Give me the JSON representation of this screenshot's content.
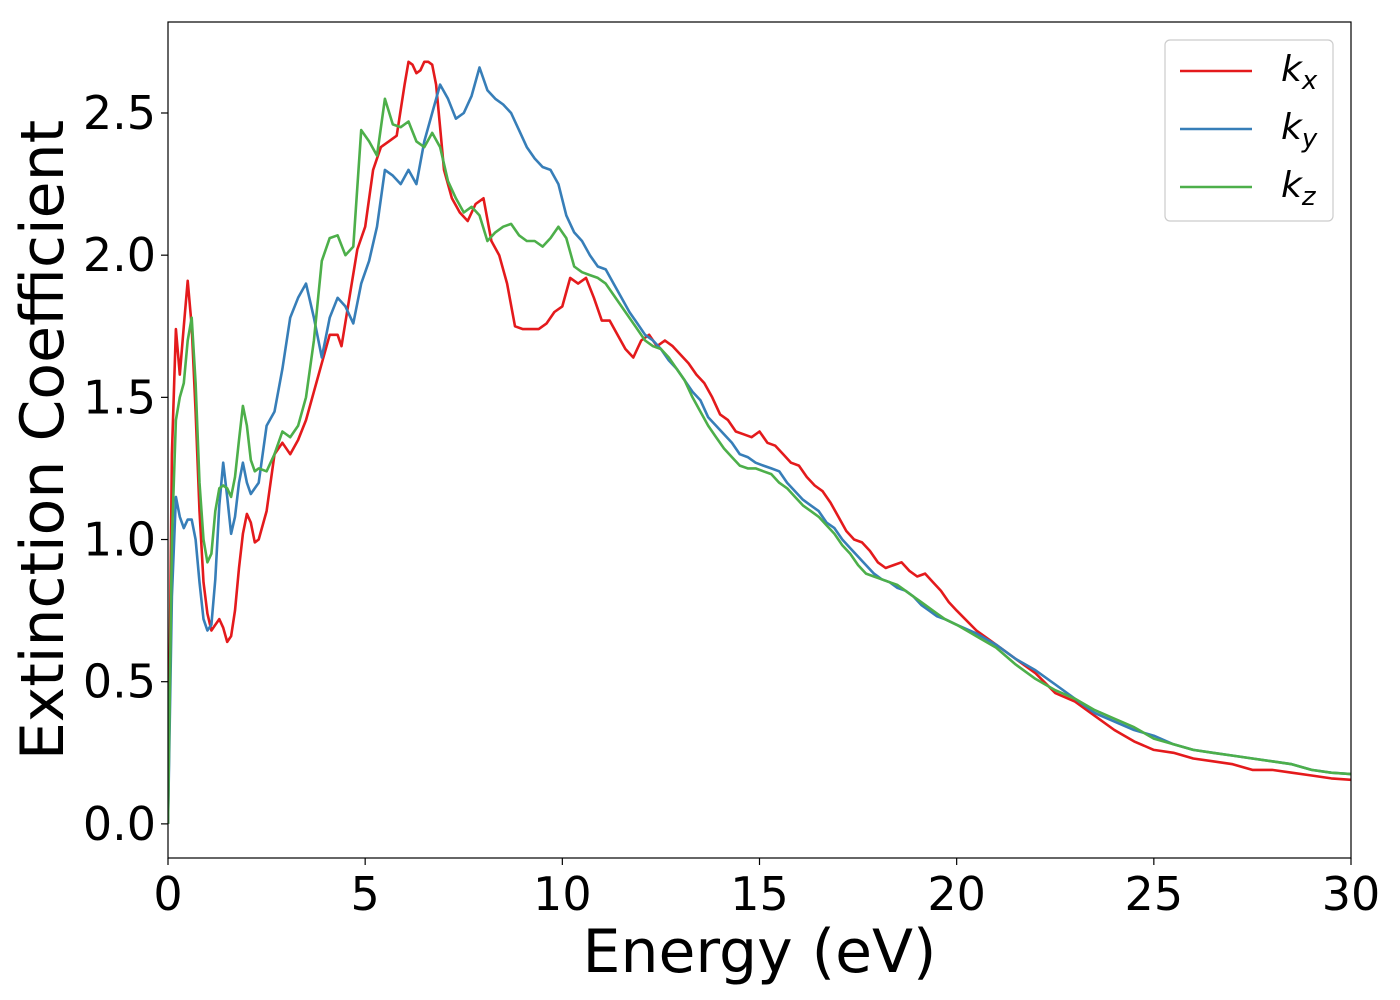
{
  "chart_data": {
    "type": "line",
    "xlabel": "Energy (eV)",
    "ylabel": "Extinction Coefficient",
    "xlim": [
      0,
      30
    ],
    "ylim": [
      -0.12,
      2.82
    ],
    "xticks": [
      0,
      5,
      10,
      15,
      20,
      25,
      30
    ],
    "yticks": [
      0.0,
      0.5,
      1.0,
      1.5,
      2.0,
      2.5
    ],
    "xtick_labels": [
      "0",
      "5",
      "10",
      "15",
      "20",
      "25",
      "30"
    ],
    "ytick_labels": [
      "0.0",
      "0.5",
      "1.0",
      "1.5",
      "2.0",
      "2.5"
    ],
    "grid": false,
    "legend_position": "top-right",
    "series": [
      {
        "name": "k_x",
        "label_main": "k",
        "label_sub": "x",
        "color": "#e41a1c",
        "x": [
          0,
          0.1,
          0.2,
          0.3,
          0.4,
          0.5,
          0.6,
          0.7,
          0.8,
          0.9,
          1.0,
          1.1,
          1.2,
          1.3,
          1.4,
          1.5,
          1.6,
          1.7,
          1.8,
          1.9,
          2.0,
          2.1,
          2.2,
          2.3,
          2.5,
          2.7,
          2.9,
          3.1,
          3.3,
          3.5,
          3.7,
          3.9,
          4.1,
          4.3,
          4.4,
          4.6,
          4.8,
          5.0,
          5.2,
          5.4,
          5.6,
          5.8,
          6.0,
          6.1,
          6.2,
          6.3,
          6.4,
          6.5,
          6.6,
          6.7,
          6.8,
          6.9,
          7.0,
          7.2,
          7.4,
          7.6,
          7.8,
          8.0,
          8.2,
          8.4,
          8.6,
          8.8,
          9.0,
          9.2,
          9.4,
          9.6,
          9.8,
          10.0,
          10.2,
          10.4,
          10.6,
          10.8,
          11.0,
          11.2,
          11.4,
          11.6,
          11.8,
          12.0,
          12.2,
          12.4,
          12.6,
          12.8,
          13.0,
          13.2,
          13.4,
          13.6,
          13.8,
          14.0,
          14.2,
          14.4,
          14.6,
          14.8,
          15.0,
          15.2,
          15.4,
          15.6,
          15.8,
          16.0,
          16.2,
          16.4,
          16.6,
          16.8,
          17.0,
          17.2,
          17.4,
          17.6,
          17.8,
          18.0,
          18.2,
          18.4,
          18.6,
          18.8,
          19.0,
          19.2,
          19.4,
          19.6,
          19.8,
          20.0,
          20.5,
          21.0,
          21.5,
          22.0,
          22.5,
          23.0,
          23.5,
          24.0,
          24.5,
          25.0,
          25.5,
          26.0,
          26.5,
          27.0,
          27.5,
          28.0,
          28.5,
          29.0,
          29.5,
          30.0
        ],
        "y": [
          0.0,
          1.3,
          1.74,
          1.58,
          1.75,
          1.91,
          1.75,
          1.45,
          1.1,
          0.85,
          0.74,
          0.68,
          0.7,
          0.72,
          0.69,
          0.64,
          0.66,
          0.75,
          0.9,
          1.02,
          1.09,
          1.06,
          0.99,
          1.0,
          1.1,
          1.3,
          1.34,
          1.3,
          1.35,
          1.42,
          1.52,
          1.62,
          1.72,
          1.72,
          1.68,
          1.85,
          2.02,
          2.1,
          2.3,
          2.38,
          2.4,
          2.42,
          2.6,
          2.68,
          2.67,
          2.64,
          2.65,
          2.68,
          2.68,
          2.67,
          2.6,
          2.45,
          2.3,
          2.2,
          2.15,
          2.12,
          2.18,
          2.2,
          2.05,
          2.0,
          1.9,
          1.75,
          1.74,
          1.74,
          1.74,
          1.76,
          1.8,
          1.82,
          1.92,
          1.9,
          1.92,
          1.85,
          1.77,
          1.77,
          1.72,
          1.67,
          1.64,
          1.7,
          1.72,
          1.68,
          1.7,
          1.68,
          1.65,
          1.62,
          1.58,
          1.55,
          1.5,
          1.44,
          1.42,
          1.38,
          1.37,
          1.36,
          1.38,
          1.34,
          1.33,
          1.3,
          1.27,
          1.26,
          1.22,
          1.19,
          1.17,
          1.13,
          1.08,
          1.03,
          1.0,
          0.99,
          0.96,
          0.92,
          0.9,
          0.91,
          0.92,
          0.89,
          0.87,
          0.88,
          0.85,
          0.82,
          0.78,
          0.75,
          0.68,
          0.63,
          0.58,
          0.53,
          0.46,
          0.43,
          0.38,
          0.33,
          0.29,
          0.26,
          0.25,
          0.23,
          0.22,
          0.21,
          0.19,
          0.19,
          0.18,
          0.17,
          0.16,
          0.155
        ]
      },
      {
        "name": "k_y",
        "label_main": "k",
        "label_sub": "y",
        "color": "#377eb8",
        "x": [
          0,
          0.1,
          0.2,
          0.3,
          0.4,
          0.5,
          0.6,
          0.7,
          0.8,
          0.9,
          1.0,
          1.1,
          1.2,
          1.3,
          1.4,
          1.5,
          1.6,
          1.7,
          1.8,
          1.9,
          2.0,
          2.1,
          2.2,
          2.3,
          2.5,
          2.7,
          2.9,
          3.1,
          3.3,
          3.5,
          3.7,
          3.9,
          4.1,
          4.3,
          4.5,
          4.7,
          4.9,
          5.1,
          5.3,
          5.5,
          5.7,
          5.9,
          6.1,
          6.3,
          6.5,
          6.7,
          6.9,
          7.1,
          7.3,
          7.5,
          7.7,
          7.9,
          8.1,
          8.3,
          8.5,
          8.7,
          8.9,
          9.1,
          9.3,
          9.5,
          9.7,
          9.9,
          10.1,
          10.3,
          10.5,
          10.7,
          10.9,
          11.1,
          11.3,
          11.5,
          11.7,
          11.9,
          12.1,
          12.3,
          12.5,
          12.7,
          12.9,
          13.1,
          13.3,
          13.5,
          13.7,
          13.9,
          14.1,
          14.3,
          14.5,
          14.7,
          14.9,
          15.1,
          15.3,
          15.5,
          15.7,
          15.9,
          16.1,
          16.3,
          16.5,
          16.7,
          16.9,
          17.1,
          17.3,
          17.5,
          17.7,
          17.9,
          18.1,
          18.3,
          18.5,
          18.7,
          18.9,
          19.1,
          19.3,
          19.5,
          19.7,
          20.0,
          20.5,
          21.0,
          21.5,
          22.0,
          22.5,
          23.0,
          23.5,
          24.0,
          24.5,
          25.0,
          25.5,
          26.0,
          26.5,
          27.0,
          27.5,
          28.0,
          28.5,
          29.0,
          29.5,
          30.0
        ],
        "y": [
          0.0,
          0.8,
          1.15,
          1.08,
          1.04,
          1.07,
          1.07,
          1.0,
          0.85,
          0.72,
          0.68,
          0.7,
          0.86,
          1.12,
          1.27,
          1.15,
          1.02,
          1.08,
          1.2,
          1.27,
          1.2,
          1.16,
          1.18,
          1.2,
          1.4,
          1.45,
          1.6,
          1.78,
          1.85,
          1.9,
          1.78,
          1.64,
          1.78,
          1.85,
          1.82,
          1.76,
          1.9,
          1.98,
          2.1,
          2.3,
          2.28,
          2.25,
          2.3,
          2.25,
          2.4,
          2.5,
          2.6,
          2.55,
          2.48,
          2.5,
          2.56,
          2.66,
          2.58,
          2.55,
          2.53,
          2.5,
          2.44,
          2.38,
          2.34,
          2.31,
          2.3,
          2.25,
          2.14,
          2.08,
          2.05,
          2.0,
          1.96,
          1.95,
          1.9,
          1.85,
          1.8,
          1.76,
          1.72,
          1.7,
          1.67,
          1.63,
          1.6,
          1.56,
          1.52,
          1.49,
          1.43,
          1.4,
          1.37,
          1.34,
          1.3,
          1.29,
          1.27,
          1.26,
          1.25,
          1.24,
          1.2,
          1.17,
          1.14,
          1.12,
          1.1,
          1.06,
          1.04,
          1.0,
          0.97,
          0.94,
          0.91,
          0.88,
          0.86,
          0.85,
          0.83,
          0.82,
          0.8,
          0.77,
          0.75,
          0.73,
          0.72,
          0.7,
          0.67,
          0.63,
          0.58,
          0.54,
          0.49,
          0.44,
          0.39,
          0.36,
          0.33,
          0.31,
          0.28,
          0.26,
          0.25,
          0.24,
          0.23,
          0.22,
          0.21,
          0.19,
          0.18,
          0.175
        ]
      },
      {
        "name": "k_z",
        "label_main": "k",
        "label_sub": "z",
        "color": "#4daf4a",
        "x": [
          0,
          0.1,
          0.2,
          0.3,
          0.4,
          0.5,
          0.6,
          0.7,
          0.8,
          0.9,
          1.0,
          1.1,
          1.2,
          1.3,
          1.4,
          1.5,
          1.6,
          1.7,
          1.8,
          1.9,
          2.0,
          2.1,
          2.2,
          2.3,
          2.5,
          2.7,
          2.9,
          3.1,
          3.3,
          3.5,
          3.7,
          3.9,
          4.1,
          4.3,
          4.5,
          4.7,
          4.9,
          5.1,
          5.3,
          5.5,
          5.7,
          5.9,
          6.1,
          6.3,
          6.5,
          6.7,
          6.9,
          7.1,
          7.3,
          7.5,
          7.7,
          7.9,
          8.1,
          8.3,
          8.5,
          8.7,
          8.9,
          9.1,
          9.3,
          9.5,
          9.7,
          9.9,
          10.1,
          10.3,
          10.5,
          10.7,
          10.9,
          11.1,
          11.3,
          11.5,
          11.7,
          11.9,
          12.1,
          12.3,
          12.5,
          12.7,
          12.9,
          13.1,
          13.3,
          13.5,
          13.7,
          13.9,
          14.1,
          14.3,
          14.5,
          14.7,
          14.9,
          15.1,
          15.3,
          15.5,
          15.7,
          15.9,
          16.1,
          16.3,
          16.5,
          16.7,
          16.9,
          17.1,
          17.3,
          17.5,
          17.7,
          17.9,
          18.1,
          18.3,
          18.5,
          18.7,
          18.9,
          19.1,
          19.3,
          19.5,
          19.7,
          20.0,
          20.5,
          21.0,
          21.5,
          22.0,
          22.5,
          23.0,
          23.5,
          24.0,
          24.5,
          25.0,
          25.5,
          26.0,
          26.5,
          27.0,
          27.5,
          28.0,
          28.5,
          29.0,
          29.5,
          30.0
        ],
        "y": [
          0.0,
          1.0,
          1.42,
          1.5,
          1.55,
          1.7,
          1.78,
          1.55,
          1.2,
          1.0,
          0.92,
          0.95,
          1.1,
          1.18,
          1.19,
          1.18,
          1.15,
          1.22,
          1.35,
          1.47,
          1.4,
          1.28,
          1.24,
          1.25,
          1.24,
          1.3,
          1.38,
          1.36,
          1.4,
          1.5,
          1.7,
          1.98,
          2.06,
          2.07,
          2.0,
          2.03,
          2.44,
          2.4,
          2.35,
          2.55,
          2.46,
          2.45,
          2.47,
          2.4,
          2.38,
          2.43,
          2.38,
          2.26,
          2.2,
          2.15,
          2.17,
          2.14,
          2.05,
          2.08,
          2.1,
          2.11,
          2.07,
          2.05,
          2.05,
          2.03,
          2.06,
          2.1,
          2.06,
          1.96,
          1.94,
          1.93,
          1.92,
          1.9,
          1.86,
          1.82,
          1.78,
          1.74,
          1.7,
          1.68,
          1.67,
          1.64,
          1.6,
          1.56,
          1.5,
          1.45,
          1.4,
          1.36,
          1.32,
          1.29,
          1.26,
          1.25,
          1.25,
          1.24,
          1.23,
          1.2,
          1.18,
          1.15,
          1.12,
          1.1,
          1.08,
          1.05,
          1.02,
          0.98,
          0.95,
          0.91,
          0.88,
          0.87,
          0.86,
          0.85,
          0.84,
          0.82,
          0.8,
          0.78,
          0.76,
          0.74,
          0.72,
          0.7,
          0.66,
          0.62,
          0.56,
          0.51,
          0.47,
          0.44,
          0.4,
          0.37,
          0.34,
          0.3,
          0.28,
          0.26,
          0.25,
          0.24,
          0.23,
          0.22,
          0.21,
          0.19,
          0.18,
          0.175
        ]
      }
    ]
  }
}
